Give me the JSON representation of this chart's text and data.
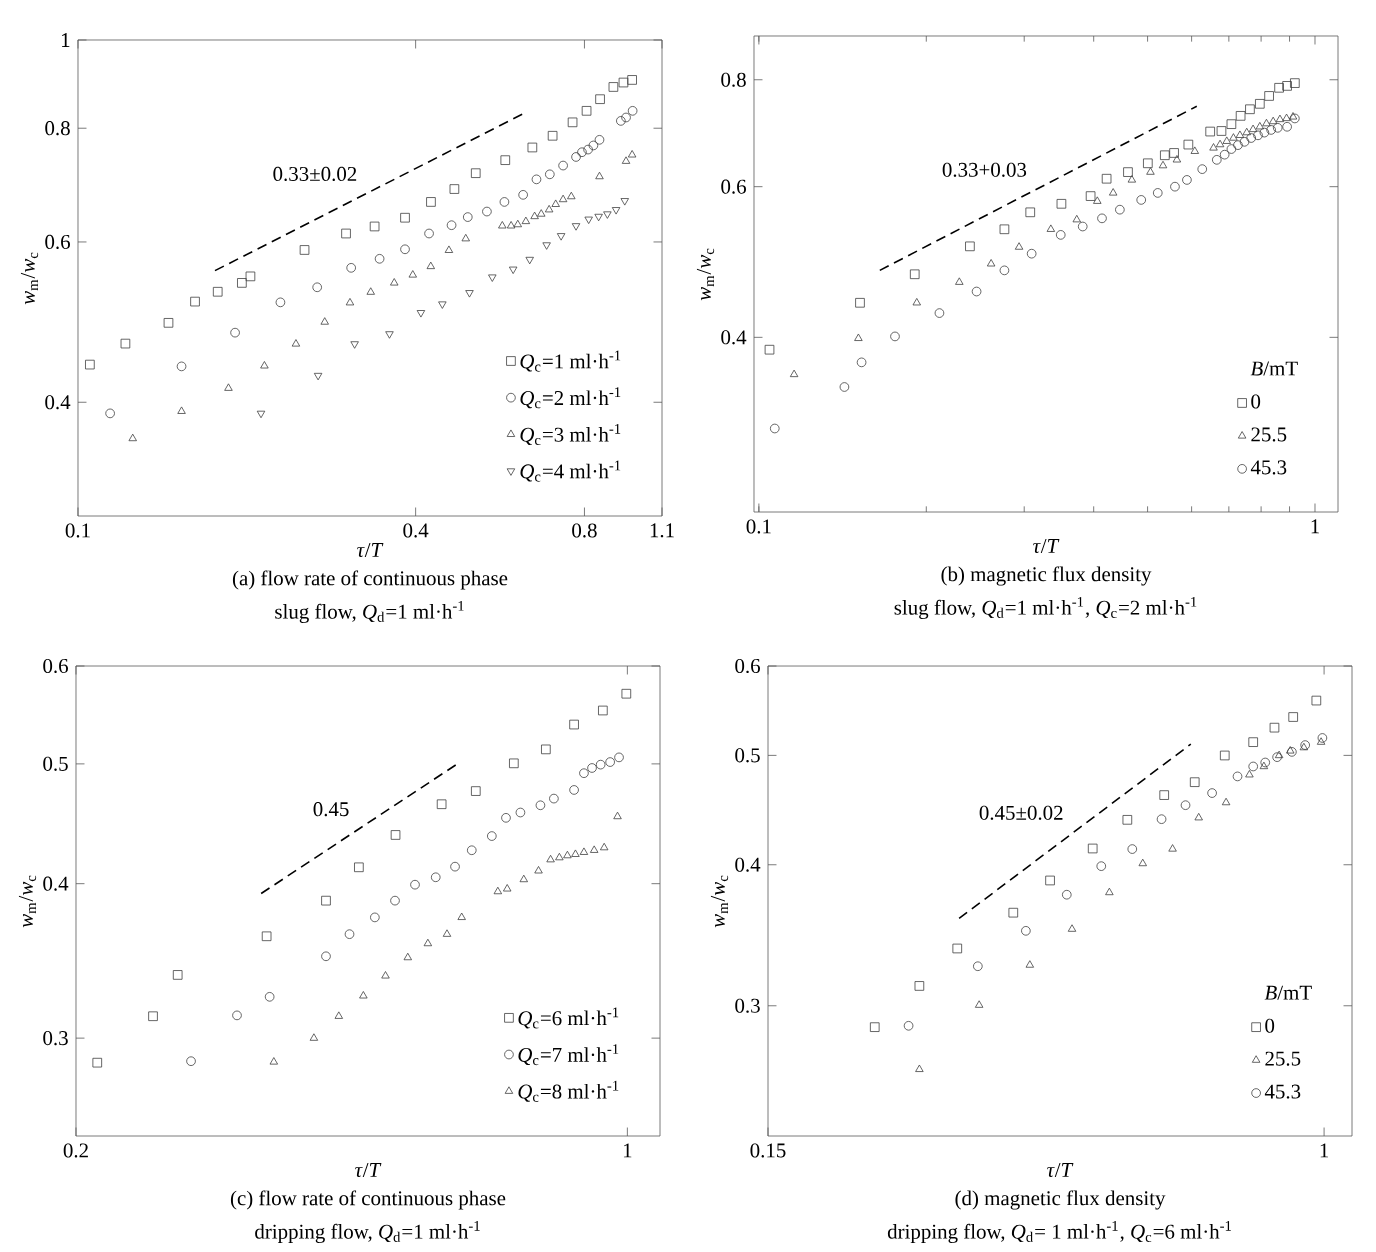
{
  "chart_data": [
    {
      "type": "scatter",
      "title": "(a) flow rate of continuous phase",
      "subtitle": "slug flow, *Q*$_{d}$=1  ml·h$^{-1}$",
      "xlabel": "*τ*/*T*",
      "ylabel": "*w*$_{m}$/*w*$_{c}$",
      "log": "xy",
      "xlim": [
        0.1,
        1.1
      ],
      "ylim": [
        0.3,
        1
      ],
      "xticks": [
        0.1,
        0.4,
        0.8,
        1.1
      ],
      "yticks": [
        0.4,
        0.6,
        0.8,
        1
      ],
      "legend": "bottom right",
      "grid": false,
      "annotations": [
        "0.33±0.02"
      ],
      "series": [
        {
          "name": "*Q*$_{c}$=1  ml·h$^{-1}$",
          "color": "#404040",
          "marker": "square",
          "x": [
            0.105,
            0.1215,
            0.145,
            0.1617,
            0.1775,
            0.196,
            0.203,
            0.2535,
            0.3006,
            0.338,
            0.383,
            0.426,
            0.469,
            0.512,
            0.578,
            0.646,
            0.702,
            0.762,
            0.807,
            0.853,
            0.901,
            0.939,
            0.973
          ],
          "values": [
            0.44,
            0.464,
            0.489,
            0.516,
            0.529,
            0.541,
            0.55,
            0.588,
            0.613,
            0.624,
            0.638,
            0.664,
            0.686,
            0.714,
            0.738,
            0.762,
            0.785,
            0.812,
            0.836,
            0.861,
            0.888,
            0.898,
            0.904
          ]
        },
        {
          "name": "*Q*$_{c}$=2  ml·h$^{-1}$",
          "color": "#404040",
          "marker": "circle",
          "x": [
            0.1141,
            0.153,
            0.1906,
            0.2296,
            0.267,
            0.307,
            0.345,
            0.383,
            0.4227,
            0.4636,
            0.4955,
            0.536,
            0.576,
            0.622,
            0.657,
            0.694,
            0.733,
            0.773,
            0.792,
            0.812,
            0.83,
            0.851,
            0.929,
            0.949,
            0.975
          ],
          "values": [
            0.389,
            0.438,
            0.477,
            0.515,
            0.535,
            0.562,
            0.575,
            0.589,
            0.613,
            0.626,
            0.639,
            0.648,
            0.664,
            0.676,
            0.703,
            0.712,
            0.728,
            0.744,
            0.753,
            0.758,
            0.766,
            0.777,
            0.815,
            0.822,
            0.836
          ]
        },
        {
          "name": "*Q*$_{c}$=3  ml·h$^{-1}$",
          "color": "#404040",
          "marker": "triangle",
          "x": [
            0.1252,
            0.153,
            0.1855,
            0.215,
            0.2447,
            0.2754,
            0.3055,
            0.3327,
            0.3664,
            0.3954,
            0.4257,
            0.4586,
            0.4914,
            0.571,
            0.592,
            0.6085,
            0.629,
            0.652,
            0.67,
            0.692,
            0.711,
            0.733,
            0.758,
            0.851,
            0.949,
            0.973
          ],
          "values": [
            0.365,
            0.391,
            0.4145,
            0.4386,
            0.4636,
            0.49,
            0.5145,
            0.5285,
            0.541,
            0.552,
            0.564,
            0.5875,
            0.605,
            0.625,
            0.625,
            0.627,
            0.632,
            0.64,
            0.644,
            0.651,
            0.66,
            0.668,
            0.673,
            0.708,
            0.736,
            0.748
          ]
        },
        {
          "name": "*Q*$_{c}$=4  ml·h$^{-1}$",
          "color": "#404040",
          "marker": "triangle_down",
          "x": [
            0.212,
            0.268,
            0.3114,
            0.3593,
            0.4088,
            0.4464,
            0.499,
            0.548,
            0.597,
            0.639,
            0.685,
            0.727,
            0.773,
            0.814,
            0.848,
            0.879,
            0.911,
            0.944
          ],
          "values": [
            0.389,
            0.428,
            0.4636,
            0.4755,
            0.5017,
            0.5128,
            0.5277,
            0.549,
            0.56,
            0.574,
            0.5955,
            0.6095,
            0.625,
            0.6355,
            0.64,
            0.644,
            0.651,
            0.666
          ]
        },
        {
          "type": "line",
          "line_style": "dashed",
          "marker": "none",
          "color": "#000000",
          "x": [
            0.1755,
            0.62
          ],
          "values": [
            0.558,
            0.829
          ]
        }
      ]
    },
    {
      "type": "scatter",
      "title": "(b) magnetic flux density",
      "subtitle": "slug flow, *Q*$_{d}$=1  ml·h$^{-1}$, *Q*$_{c}$=2  ml·h$^{-1}$",
      "xlabel": "*τ*/*T*",
      "ylabel": "*w*$_{m}$/*w*$_{c}$",
      "log": "xy",
      "xlim": [
        0.098,
        1.1
      ],
      "ylim": [
        0.25,
        0.9
      ],
      "xticks": [
        0.1,
        1
      ],
      "yticks": [
        0.4,
        0.6,
        0.8
      ],
      "legend": "bottom right",
      "legend_title": "*B*/mT",
      "grid": false,
      "annotations": [
        "0.33+0.03"
      ],
      "series": [
        {
          "name": "0",
          "color": "#404040",
          "marker": "square",
          "x": [
            0.1045,
            0.152,
            0.1907,
            0.2396,
            0.2764,
            0.3076,
            0.35,
            0.395,
            0.422,
            0.461,
            0.5005,
            0.537,
            0.558,
            0.592,
            0.648,
            0.679,
            0.7075,
            0.735,
            0.764,
            0.796,
            0.827,
            0.862,
            0.891,
            0.92
          ],
          "values": [
            0.387,
            0.439,
            0.474,
            0.511,
            0.535,
            0.56,
            0.573,
            0.585,
            0.613,
            0.624,
            0.639,
            0.653,
            0.657,
            0.672,
            0.696,
            0.697,
            0.71,
            0.726,
            0.739,
            0.75,
            0.766,
            0.783,
            0.787,
            0.793
          ]
        },
        {
          "name": "25.5",
          "color": "#404040",
          "marker": "triangle",
          "x": [
            0.1157,
            0.151,
            0.1923,
            0.2293,
            0.2616,
            0.2937,
            0.335,
            0.373,
            0.406,
            0.4336,
            0.4685,
            0.506,
            0.533,
            0.5646,
            0.608,
            0.657,
            0.675,
            0.694,
            0.7135,
            0.733,
            0.754,
            0.774,
            0.796,
            0.818,
            0.841,
            0.865,
            0.889,
            0.913
          ],
          "values": [
            0.362,
            0.399,
            0.439,
            0.464,
            0.4875,
            0.51,
            0.535,
            0.549,
            0.577,
            0.59,
            0.611,
            0.624,
            0.635,
            0.645,
            0.66,
            0.666,
            0.672,
            0.678,
            0.684,
            0.689,
            0.694,
            0.7,
            0.705,
            0.711,
            0.715,
            0.719,
            0.721,
            0.724
          ]
        },
        {
          "name": "45.3",
          "color": "#404040",
          "marker": "circle",
          "x": [
            0.1068,
            0.1425,
            0.153,
            0.1757,
            0.2112,
            0.2463,
            0.2764,
            0.3094,
            0.349,
            0.3823,
            0.414,
            0.4458,
            0.487,
            0.5215,
            0.56,
            0.5885,
            0.627,
            0.666,
            0.688,
            0.7075,
            0.727,
            0.747,
            0.768,
            0.79,
            0.811,
            0.834,
            0.857,
            0.891,
            0.92
          ],
          "values": [
            0.313,
            0.35,
            0.374,
            0.401,
            0.427,
            0.4525,
            0.479,
            0.501,
            0.527,
            0.539,
            0.551,
            0.564,
            0.579,
            0.59,
            0.6,
            0.611,
            0.629,
            0.645,
            0.654,
            0.664,
            0.671,
            0.677,
            0.684,
            0.689,
            0.694,
            0.699,
            0.703,
            0.705,
            0.721
          ]
        },
        {
          "type": "line",
          "line_style": "dashed",
          "marker": "none",
          "color": "#000000",
          "x": [
            0.165,
            0.613
          ],
          "values": [
            0.479,
            0.745
          ]
        }
      ]
    },
    {
      "type": "scatter",
      "title": "(c) flow rate of continuous phase",
      "subtitle": "dripping flow, *Q*$_{d}$=1  ml·h$^{-1}$",
      "xlabel": "*τ*/*T*",
      "ylabel": "*w*$_{m}$/*w*$_{c}$",
      "log": "xy",
      "xlim": [
        0.2,
        1.1
      ],
      "ylim": [
        0.25,
        0.6
      ],
      "xticks": [
        0.2,
        1
      ],
      "yticks": [
        0.3,
        0.4,
        0.5,
        0.6
      ],
      "legend": "bottom right",
      "grid": false,
      "annotations": [
        "0.45"
      ],
      "series": [
        {
          "name": "*Q*$_{c}$=6 ml·h$^{-1}$",
          "color": "#404040",
          "marker": "square",
          "x": [
            0.2128,
            0.2504,
            0.2691,
            0.3489,
            0.4149,
            0.4567,
            0.5083,
            0.5815,
            0.6425,
            0.718,
            0.7885,
            0.856,
            0.931,
            0.997
          ],
          "values": [
            0.2866,
            0.3125,
            0.3375,
            0.3627,
            0.3876,
            0.4124,
            0.438,
            0.4638,
            0.4753,
            0.5005,
            0.5137,
            0.538,
            0.5523,
            0.5698
          ]
        },
        {
          "name": "*Q*$_{c}$=7 ml·h$^{-1}$",
          "color": "#404040",
          "marker": "circle",
          "x": [
            0.2798,
            0.32,
            0.352,
            0.4149,
            0.4444,
            0.4785,
            0.5075,
            0.538,
            0.5716,
            0.6047,
            0.635,
            0.6733,
            0.7017,
            0.732,
            0.776,
            0.807,
            0.856,
            0.881,
            0.902,
            0.925,
            0.951,
            0.976
          ],
          "values": [
            0.2874,
            0.313,
            0.324,
            0.3494,
            0.3641,
            0.3757,
            0.3876,
            0.3993,
            0.4048,
            0.4129,
            0.4257,
            0.4371,
            0.4522,
            0.4567,
            0.4629,
            0.4687,
            0.4763,
            0.4914,
            0.4962,
            0.4993,
            0.5017,
            0.5061
          ]
        },
        {
          "name": "*Q*$_{c}$=8 ml·h$^{-1}$",
          "color": "#404040",
          "marker": "triangle",
          "x": [
            0.3563,
            0.4005,
            0.4307,
            0.4627,
            0.4936,
            0.5268,
            0.5586,
            0.5907,
            0.6166,
            0.6852,
            0.7042,
            0.7392,
            0.7717,
            0.7993,
            0.82,
            0.8395,
            0.8594,
            0.881,
            0.9077,
            0.9346,
            0.9717
          ],
          "values": [
            0.287,
            0.3,
            0.3125,
            0.3246,
            0.3369,
            0.3486,
            0.3578,
            0.3641,
            0.3757,
            0.3942,
            0.3962,
            0.4031,
            0.4097,
            0.4183,
            0.4199,
            0.4215,
            0.4225,
            0.4241,
            0.4257,
            0.4278,
            0.4533
          ]
        },
        {
          "type": "line",
          "line_style": "dashed",
          "marker": "none",
          "color": "#000000",
          "x": [
            0.3434,
            0.6141
          ],
          "values": [
            0.3928,
            0.5018
          ]
        }
      ]
    },
    {
      "type": "scatter",
      "title": "(d) magnetic flux density",
      "subtitle": "dripping flow, *Q*$_{d}$= 1 ml·h$^{-1}$, *Q*$_{c}$=6 ml·h$^{-1}$",
      "xlabel": "*τ*/*T*",
      "ylabel": "*w*$_{m}$/*w*$_{c}$",
      "log": "xy",
      "xlim": [
        0.15,
        1.1
      ],
      "ylim": [
        0.23,
        0.6
      ],
      "xticks": [
        0.15,
        1
      ],
      "yticks": [
        0.3,
        0.4,
        0.5,
        0.6
      ],
      "legend": "bottom right",
      "legend_title": "*B*/mT",
      "grid": false,
      "annotations": [
        "0.45±0.02"
      ],
      "series": [
        {
          "name": "0",
          "color": "#404040",
          "marker": "square",
          "x": [
            0.2159,
            0.2514,
            0.2861,
            0.3464,
            0.3927,
            0.4541,
            0.5111,
            0.5796,
            0.6432,
            0.7126,
            0.7853,
            0.8443,
            0.9,
            0.974
          ],
          "values": [
            0.2872,
            0.3124,
            0.3372,
            0.3628,
            0.3874,
            0.4135,
            0.4384,
            0.4611,
            0.4734,
            0.4999,
            0.5137,
            0.5291,
            0.5407,
            0.5592
          ]
        },
        {
          "name": "25.5",
          "color": "#404040",
          "marker": "triangle",
          "x": [
            0.2514,
            0.3083,
            0.3665,
            0.4232,
            0.4807,
            0.5387,
            0.5964,
            0.652,
            0.7159,
            0.7753,
            0.8144,
            0.8578,
            0.891,
            0.9334,
            0.9899
          ],
          "values": [
            0.2635,
            0.3004,
            0.326,
            0.3508,
            0.378,
            0.401,
            0.4131,
            0.4403,
            0.4541,
            0.4806,
            0.4888,
            0.4999,
            0.5046,
            0.508,
            0.5137
          ]
        },
        {
          "name": "45.3",
          "color": "#404040",
          "marker": "circle",
          "x": [
            0.2423,
            0.3069,
            0.3616,
            0.4157,
            0.4676,
            0.5198,
            0.5744,
            0.6234,
            0.6825,
            0.7444,
            0.7853,
            0.8181,
            0.852,
            0.896,
            0.9376,
            0.9943
          ],
          "values": [
            0.288,
            0.3252,
            0.3496,
            0.3763,
            0.3989,
            0.413,
            0.439,
            0.4517,
            0.463,
            0.479,
            0.4888,
            0.4928,
            0.4982,
            0.5036,
            0.5106,
            0.5181
          ]
        },
        {
          "type": "line",
          "line_style": "dashed",
          "marker": "none",
          "color": "#000000",
          "x": [
            0.2879,
            0.6347
          ],
          "values": [
            0.3585,
            0.5116
          ]
        }
      ]
    }
  ]
}
